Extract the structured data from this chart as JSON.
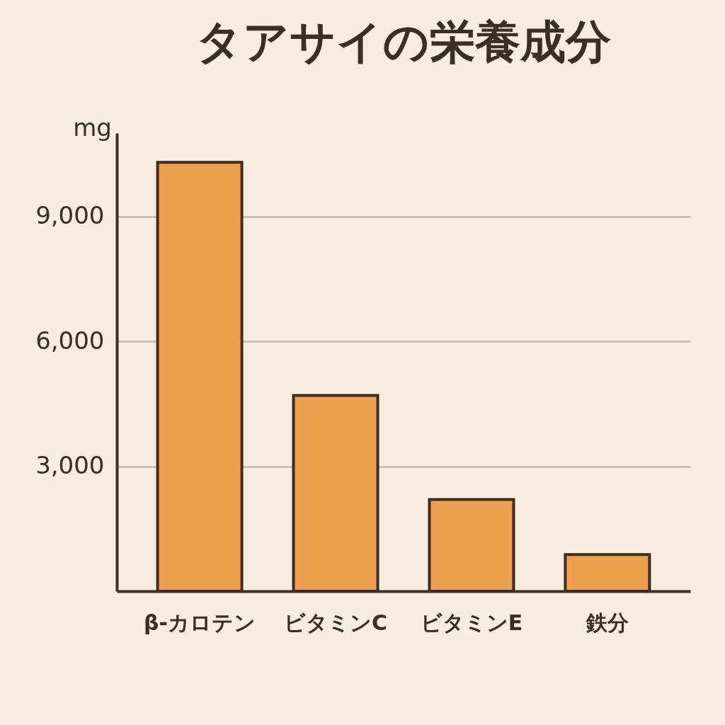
{
  "chart_data": {
    "type": "bar",
    "title": "タアサイの栄養成分",
    "ylabel": "mg",
    "categories": [
      "β-カロテン",
      "ビタミンC",
      "ビタミンE",
      "鉄分"
    ],
    "values": [
      10300,
      4700,
      2200,
      880
    ],
    "color": "#eda050",
    "ylim": [
      0,
      11000
    ],
    "yticks": [
      {
        "value": 3000,
        "label": "3,000"
      },
      {
        "value": 6000,
        "label": "6,000"
      },
      {
        "value": 9000,
        "label": "9,000"
      }
    ],
    "grid": "y"
  }
}
